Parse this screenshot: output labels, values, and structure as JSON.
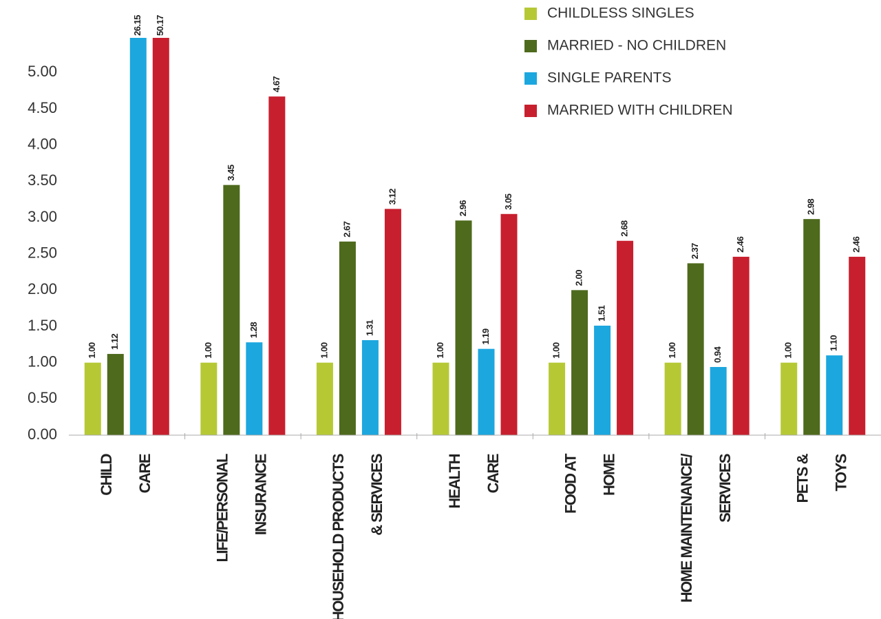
{
  "chart_data": {
    "type": "bar",
    "categories": [
      [
        "CHILD",
        "CARE"
      ],
      [
        "LIFE/PERSONAL",
        "INSURANCE"
      ],
      [
        "HOUSEHOLD PRODUCTS",
        "& SERVICES"
      ],
      [
        "HEALTH",
        "CARE"
      ],
      [
        "FOOD AT",
        "HOME"
      ],
      [
        "HOME MAINTENANCE/",
        "SERVICES"
      ],
      [
        "PETS &",
        "TOYS"
      ]
    ],
    "series": [
      {
        "name": "CHILDLESS SINGLES",
        "color": "#b6c935",
        "values": [
          1.0,
          1.0,
          1.0,
          1.0,
          1.0,
          1.0,
          1.0
        ],
        "value_labels": [
          "1.00",
          "1.00",
          "1.00",
          "1.00",
          "1.00",
          "1.00",
          "1.00"
        ]
      },
      {
        "name": "MARRIED - NO CHILDREN",
        "color": "#4e6a1d",
        "values": [
          1.12,
          3.45,
          2.67,
          2.96,
          2.0,
          2.37,
          2.98
        ],
        "value_labels": [
          "1.12",
          "3.45",
          "2.67",
          "2.96",
          "2.00",
          "2.37",
          "2.98"
        ]
      },
      {
        "name": "SINGLE PARENTS",
        "color": "#1ca7df",
        "values": [
          26.15,
          1.28,
          1.31,
          1.19,
          1.51,
          0.94,
          1.1
        ],
        "value_labels": [
          "26.15",
          "1.28",
          "1.31",
          "1.19",
          "1.51",
          "0.94",
          "1.10"
        ]
      },
      {
        "name": "MARRIED WITH CHILDREN",
        "color": "#c81f2e",
        "values": [
          50.17,
          4.67,
          3.12,
          3.05,
          2.68,
          2.46,
          2.46
        ],
        "value_labels": [
          "50.17",
          "4.67",
          "3.12",
          "3.05",
          "2.68",
          "2.46",
          "2.46"
        ]
      }
    ],
    "ylim": [
      0,
      5.45
    ],
    "yticks": [
      {
        "value": 0,
        "label": "0.00"
      },
      {
        "value": 0.5,
        "label": "0.50"
      },
      {
        "value": 1,
        "label": "1.00"
      },
      {
        "value": 1.5,
        "label": "1.50"
      },
      {
        "value": 2,
        "label": "2.00"
      },
      {
        "value": 2.5,
        "label": "2.50"
      },
      {
        "value": 3,
        "label": "3.00"
      },
      {
        "value": 3.5,
        "label": "3.50"
      },
      {
        "value": 4,
        "label": "4.00"
      },
      {
        "value": 4.5,
        "label": "4.50"
      },
      {
        "value": 5,
        "label": "5.00"
      }
    ],
    "grid": false,
    "legend": "top-right"
  }
}
